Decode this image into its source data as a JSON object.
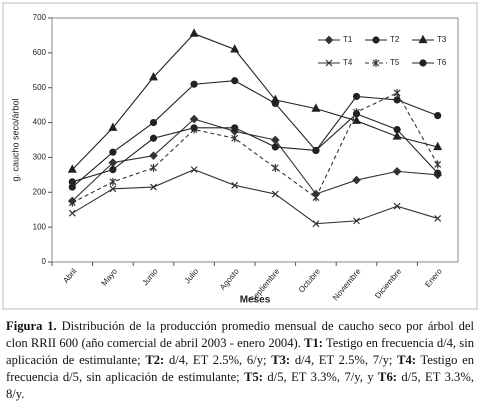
{
  "chart_data": {
    "type": "line",
    "x_label": "Meses",
    "y_label": "g. caucho seco/árbol",
    "categories": [
      "Abril",
      "Mayo",
      "Junio",
      "Julio",
      "Agosto",
      "Septiembre",
      "Octubre",
      "Noviembre",
      "Diciembre",
      "Enero"
    ],
    "ylim": [
      0,
      700
    ],
    "yticks": [
      0,
      100,
      200,
      300,
      400,
      500,
      600,
      700
    ],
    "legend": "upper right",
    "series": [
      {
        "name": "T1",
        "color": "#333333",
        "marker": "diamond",
        "dashed": false,
        "values": [
          175,
          285,
          305,
          410,
          375,
          350,
          195,
          235,
          260,
          250
        ]
      },
      {
        "name": "T2",
        "color": "#222222",
        "marker": "circle",
        "dashed": false,
        "values": [
          215,
          315,
          400,
          510,
          520,
          455,
          320,
          475,
          465,
          420
        ]
      },
      {
        "name": "T3",
        "color": "#222222",
        "marker": "triangle",
        "dashed": false,
        "values": [
          265,
          385,
          530,
          655,
          610,
          465,
          440,
          405,
          360,
          330
        ]
      },
      {
        "name": "T4",
        "color": "#333333",
        "marker": "x",
        "dashed": false,
        "values": [
          140,
          210,
          215,
          265,
          220,
          195,
          110,
          118,
          160,
          125
        ]
      },
      {
        "name": "T5",
        "color": "#333333",
        "marker": "star",
        "dashed": true,
        "values": [
          170,
          230,
          270,
          380,
          355,
          270,
          185,
          430,
          485,
          280
        ]
      },
      {
        "name": "T6",
        "color": "#222222",
        "marker": "circle",
        "dashed": false,
        "values": [
          230,
          265,
          355,
          385,
          385,
          330,
          320,
          425,
          380,
          255
        ]
      }
    ]
  },
  "caption": [
    {
      "text": "Figura 1.",
      "bold": true
    },
    {
      "text": " Distribución de la producción promedio mensual de caucho seco por árbol del clon ",
      "bold": false
    },
    {
      "text": "RRII 600",
      "bold": false
    },
    {
      "text": " (año comercial de abril 2003 - enero 2004). ",
      "bold": false
    },
    {
      "text": "T1:",
      "bold": true
    },
    {
      "text": " Testigo en frecuencia d/4, sin aplicación de estimulante; ",
      "bold": false
    },
    {
      "text": "T2:",
      "bold": true
    },
    {
      "text": " d/4, ET 2.5%, 6/y; ",
      "bold": false
    },
    {
      "text": "T3:",
      "bold": true
    },
    {
      "text": " d/4, ET 2.5%, 7/y; ",
      "bold": false
    },
    {
      "text": "T4:",
      "bold": true
    },
    {
      "text": " Testigo en frecuencia d/5, sin aplicación de estimulante; ",
      "bold": false
    },
    {
      "text": "T5:",
      "bold": true
    },
    {
      "text": " d/5, ET 3.3%, 7/y, y ",
      "bold": false
    },
    {
      "text": "T6:",
      "bold": true
    },
    {
      "text": " d/5, ET 3.3%, 8/y.",
      "bold": false
    }
  ]
}
